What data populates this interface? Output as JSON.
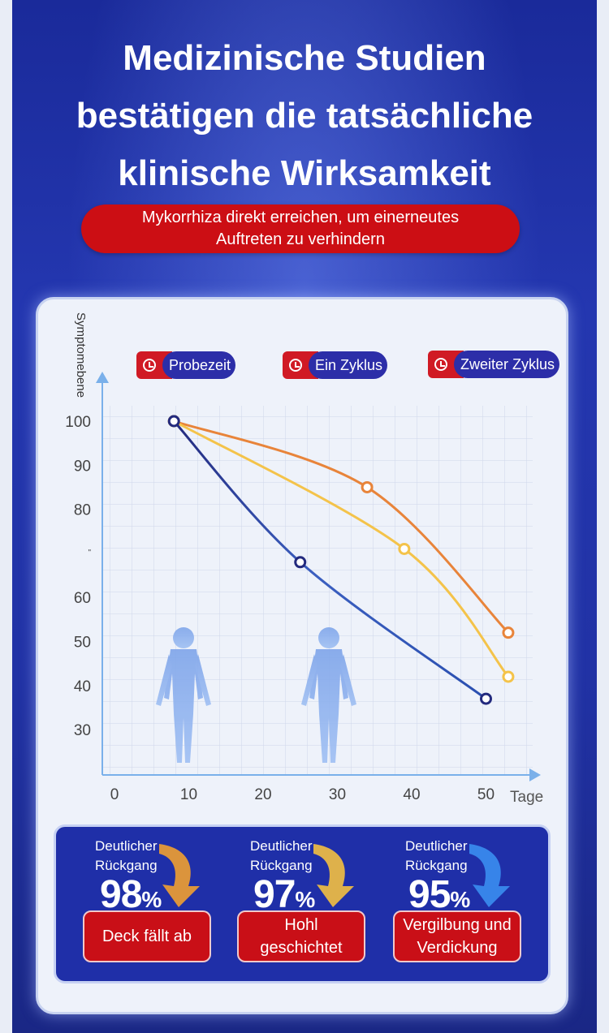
{
  "header": {
    "title_lines": [
      "Medizinische Studien",
      "bestätigen die tatsächliche",
      "klinische Wirksamkeit"
    ],
    "subtitle_lines": [
      "Mykorrhiza direkt erreichen, um einerneutes",
      "Auftreten zu verhindern"
    ]
  },
  "legend": [
    "Probezeit",
    "Ein Zyklus",
    "Zweiter Zyklus"
  ],
  "results": [
    {
      "caption_lines": [
        "Deutlicher",
        "Rückgang"
      ],
      "value": "98",
      "unit": "%",
      "label_lines": [
        "Deck fällt ab"
      ],
      "arrow_color": "#f0a030"
    },
    {
      "caption_lines": [
        "Deutlicher",
        "Rückgang"
      ],
      "value": "97",
      "unit": "%",
      "label_lines": [
        "Hohl",
        "geschichtet"
      ],
      "arrow_color": "#f3c040"
    },
    {
      "caption_lines": [
        "Deutlicher",
        "Rückgang"
      ],
      "value": "95",
      "unit": "%",
      "label_lines": [
        "Vergilbung und",
        "Verdickung"
      ],
      "arrow_color": "#3a8ef0"
    }
  ],
  "colors": {
    "accent_red": "#cc0e14",
    "navy": "#1f2fa8"
  },
  "chart_data": {
    "type": "line",
    "ylabel": "Symptomebene",
    "xlabel": "Tage",
    "x_ticks": [
      "0",
      "10",
      "20",
      "30",
      "40",
      "50"
    ],
    "y_ticks": [
      "100",
      "90",
      "80",
      "\"",
      "60",
      "50",
      "40",
      "30"
    ],
    "xlim": [
      0,
      55
    ],
    "ylim": [
      22,
      106
    ],
    "series": [
      {
        "color": "#e8843a",
        "values": [
          [
            8,
            100
          ],
          [
            34,
            85
          ],
          [
            53,
            52
          ]
        ]
      },
      {
        "color": "#f4c34a",
        "values": [
          [
            8,
            100
          ],
          [
            39,
            71
          ],
          [
            53,
            42
          ]
        ]
      },
      {
        "color": "#232a7e",
        "values": [
          [
            8,
            100
          ],
          [
            25,
            68
          ],
          [
            50,
            37
          ]
        ]
      }
    ]
  }
}
